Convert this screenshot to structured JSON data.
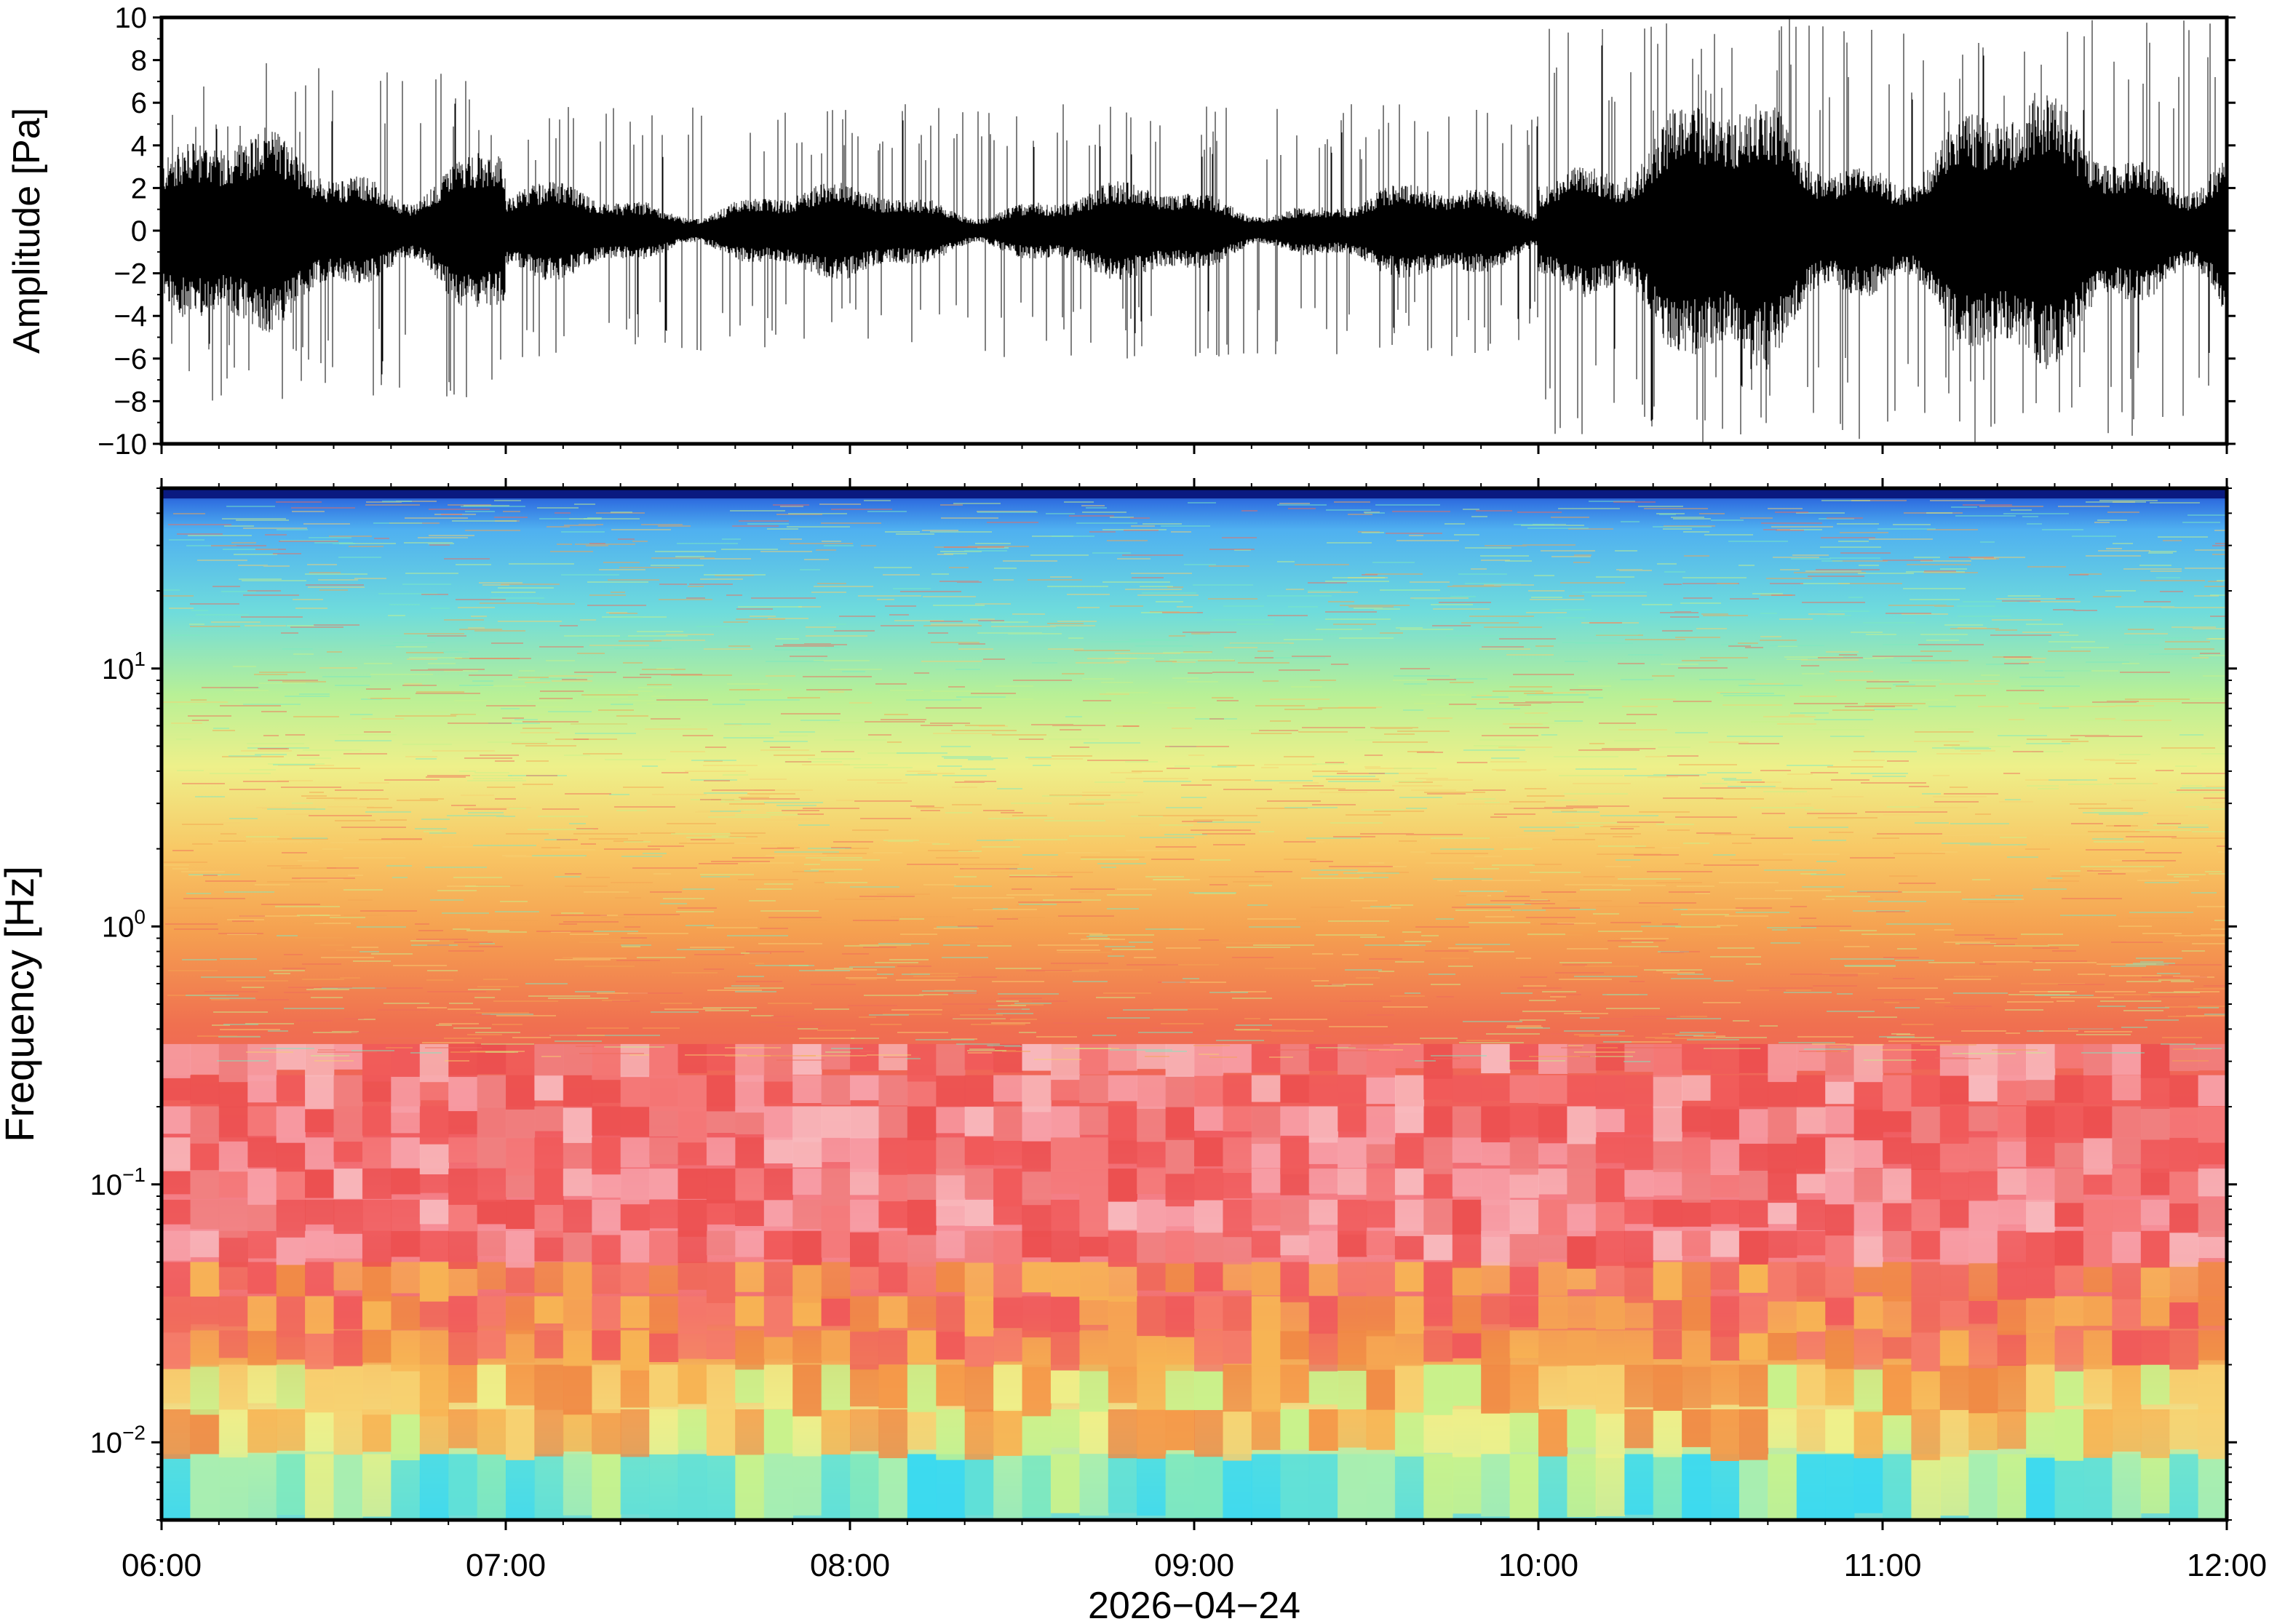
{
  "chart_data": [
    {
      "type": "line",
      "ylabel": "Amplitude [Pa]",
      "ylim": [
        -10,
        10
      ],
      "yticks": [
        "10",
        "8",
        "6",
        "4",
        "2",
        "0",
        "−2",
        "−4",
        "−6",
        "−8",
        "−10"
      ],
      "xlim_hours": [
        6,
        12
      ],
      "grid": false,
      "segments": [
        {
          "start": "06:00",
          "end": "07:00",
          "envelope_pa": 3.0,
          "peak_pa": 8
        },
        {
          "start": "07:00",
          "end": "10:00",
          "envelope_pa": 1.4,
          "peak_pa": 6
        },
        {
          "start": "10:00",
          "end": "12:00",
          "envelope_pa": 4.0,
          "peak_pa": 10
        }
      ],
      "color": "#000000"
    },
    {
      "type": "heatmap",
      "ylabel": "Frequency [Hz]",
      "yscale": "log",
      "ylim": [
        0.005,
        50
      ],
      "yticks": [
        {
          "value": 0.01,
          "base": "10",
          "exp": "−2"
        },
        {
          "value": 0.1,
          "base": "10",
          "exp": "−1"
        },
        {
          "value": 1,
          "base": "10",
          "exp": "0"
        },
        {
          "value": 10,
          "base": "10",
          "exp": "1"
        }
      ],
      "xlabel": "2026−04−24",
      "x_ticks": [
        "06:00",
        "07:00",
        "08:00",
        "09:00",
        "10:00",
        "11:00",
        "12:00"
      ],
      "colormap": [
        "#3ad9f0",
        "#7de8c0",
        "#c8f28c",
        "#f0e27a",
        "#f7b454",
        "#f08a45",
        "#f05a5a",
        "#f7a0a8"
      ],
      "top_band_color": "#0a1a80",
      "grid": false
    }
  ]
}
